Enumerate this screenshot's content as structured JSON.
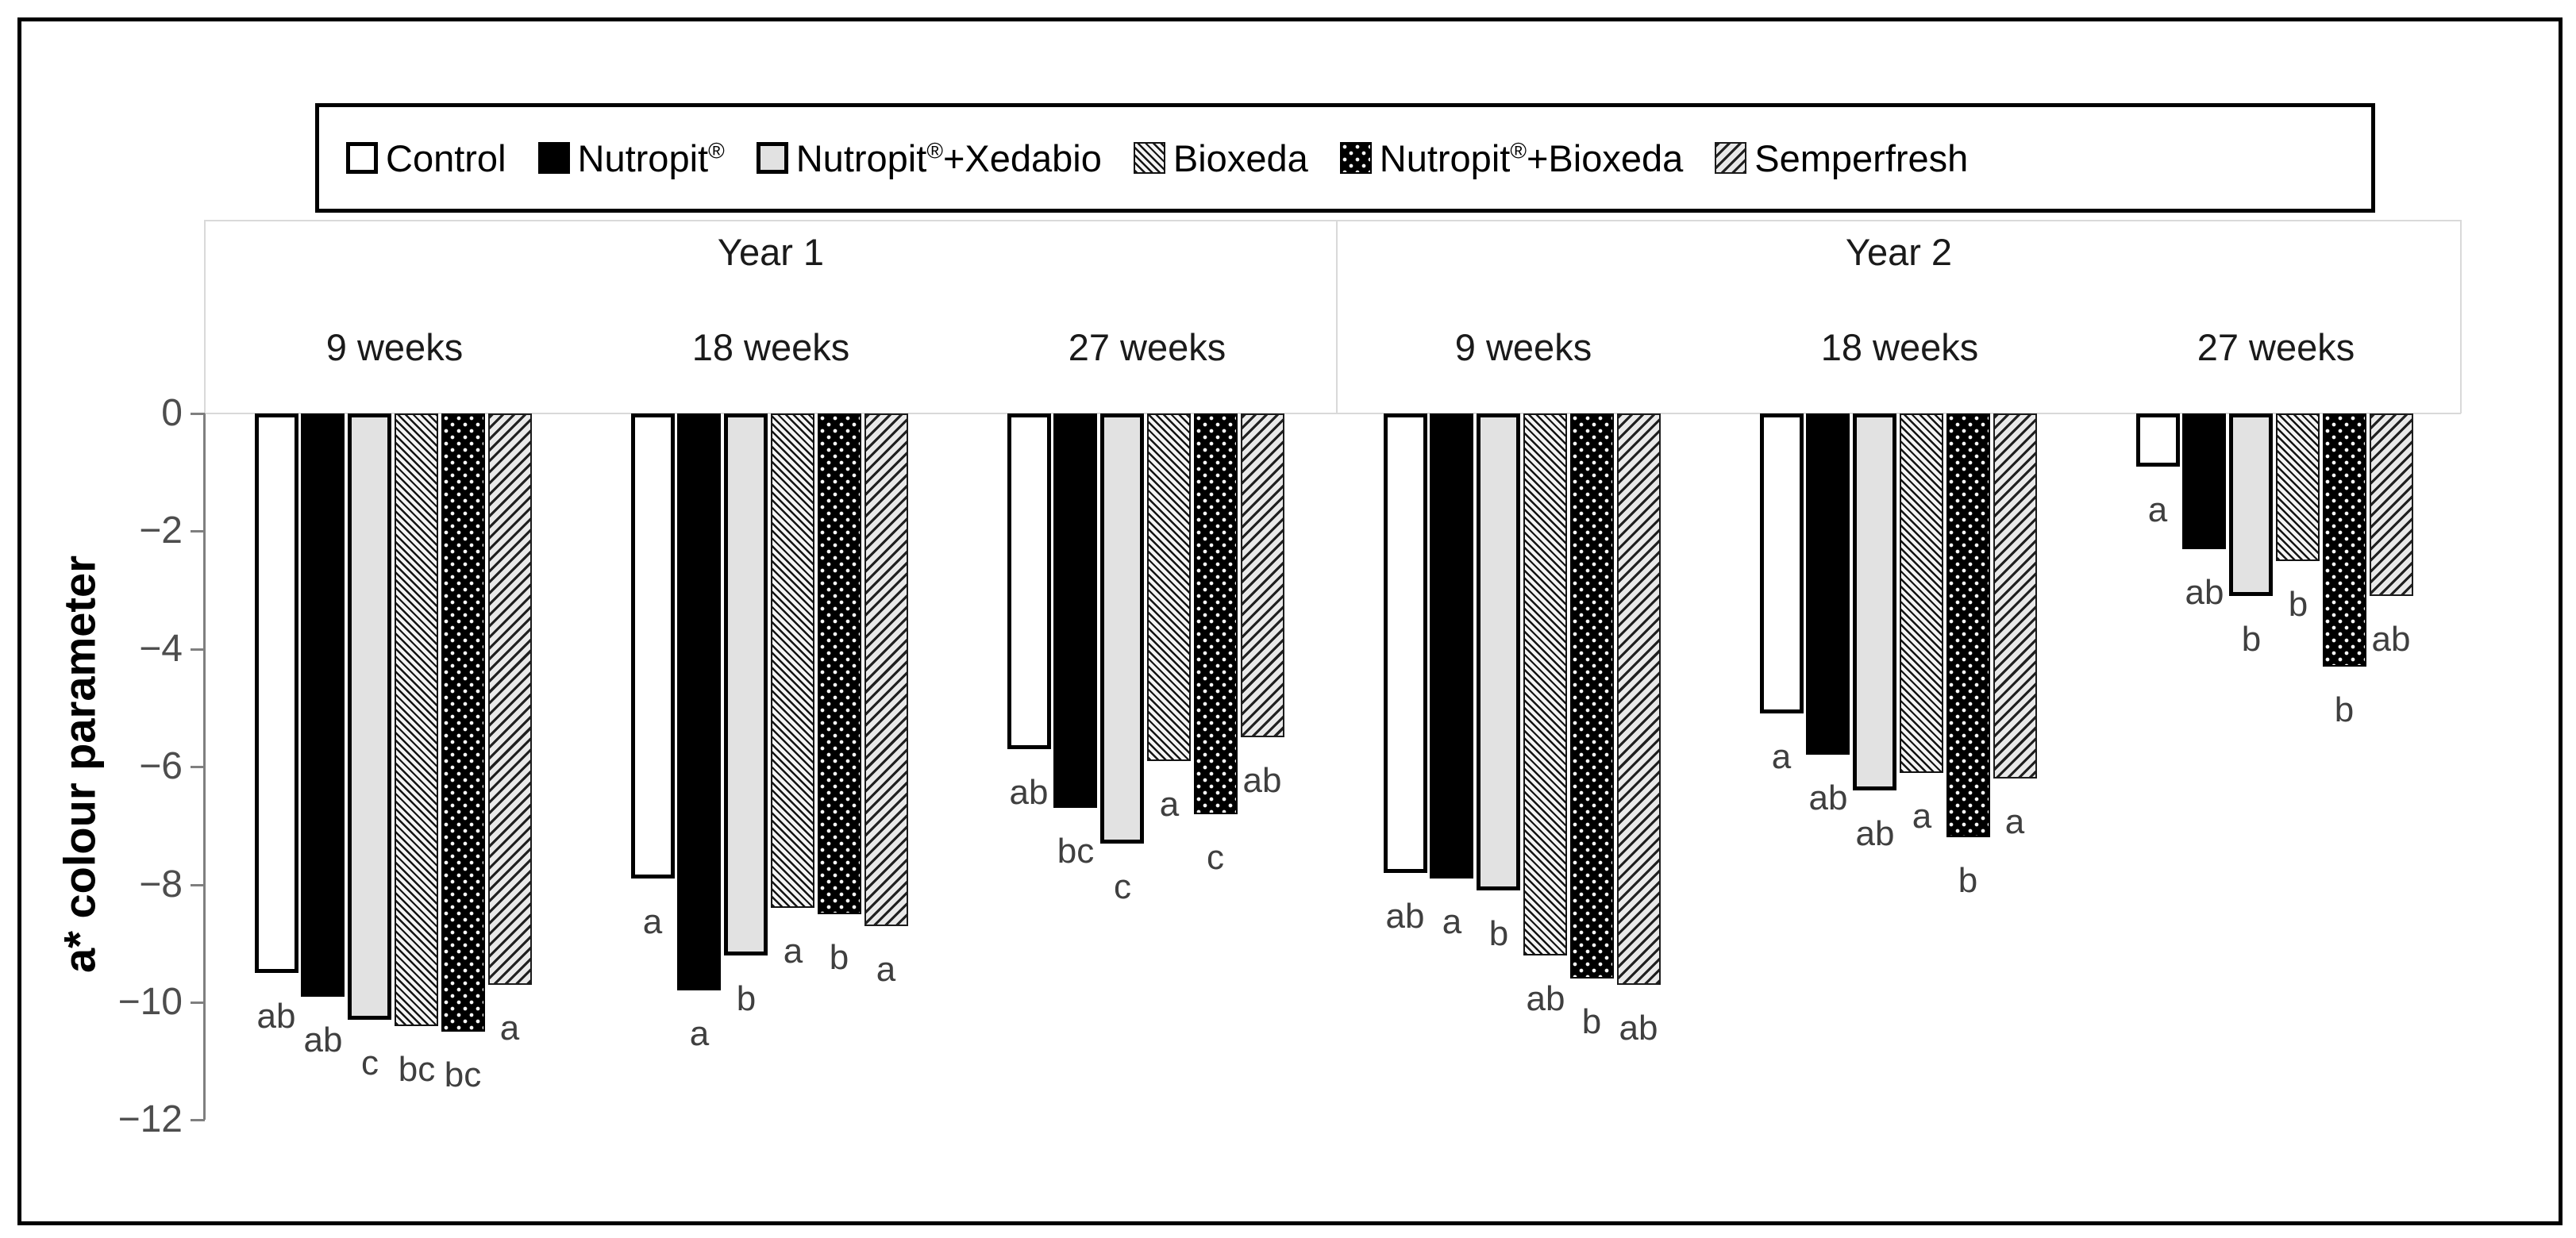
{
  "colors": {
    "hairline": "#d9d9d9",
    "axis_line": "#7f7f7f",
    "tick_text": "#4d4d4d",
    "letter_text": "#3f3f3f",
    "bar_light_gray": "#e2e2e2",
    "bar_black": "#000000",
    "background": "#ffffff"
  },
  "chart_data": {
    "type": "bar",
    "title": "",
    "xlabel": "",
    "ylabel": "a* colour parameter",
    "ylim": [
      -12,
      0
    ],
    "ytick_labels": [
      "0",
      "−2",
      "−4",
      "−6",
      "−8",
      "−10",
      "−12"
    ],
    "grid": false,
    "legend_position": "top",
    "categories": [
      "9 weeks",
      "18 weeks",
      "27 weeks",
      "9 weeks",
      "18 weeks",
      "27 weeks"
    ],
    "year_bands": [
      {
        "label": "Year 1",
        "group_indexes": [
          0,
          1,
          2
        ]
      },
      {
        "label": "Year 2",
        "group_indexes": [
          3,
          4,
          5
        ]
      }
    ],
    "series": [
      {
        "name": "Control",
        "pattern": "white-outline",
        "values": [
          -9.5,
          -7.9,
          -5.7,
          -7.8,
          -5.1,
          -0.9
        ],
        "sig_letters": [
          "ab",
          "a",
          "ab",
          "ab",
          "a",
          "a"
        ]
      },
      {
        "name": "Nutropit®",
        "pattern": "solid-black",
        "values": [
          -9.9,
          -9.8,
          -6.7,
          -7.9,
          -5.8,
          -2.3
        ],
        "sig_letters": [
          "ab",
          "a",
          "bc",
          "a",
          "ab",
          "ab"
        ]
      },
      {
        "name": "Nutropit®+Xedabio",
        "pattern": "light-gray",
        "values": [
          -10.3,
          -9.2,
          -7.3,
          -8.1,
          -6.4,
          -3.1
        ],
        "sig_letters": [
          "c",
          "b",
          "c",
          "b",
          "ab",
          "b"
        ]
      },
      {
        "name": "Bioxeda",
        "pattern": "diagonal-hatch-down",
        "values": [
          -10.4,
          -8.4,
          -5.9,
          -9.2,
          -6.1,
          -2.5
        ],
        "sig_letters": [
          "bc",
          "a",
          "a",
          "ab",
          "a",
          "b"
        ]
      },
      {
        "name": "Nutropit®+Bioxeda",
        "pattern": "black-white-dots",
        "values": [
          -10.5,
          -8.5,
          -6.8,
          -9.6,
          -7.2,
          -4.3
        ],
        "sig_letters": [
          "bc",
          "b",
          "c",
          "b",
          "b",
          "b"
        ]
      },
      {
        "name": "Semperfresh",
        "pattern": "diagonal-hatch-up",
        "values": [
          -9.7,
          -8.7,
          -5.5,
          -9.7,
          -6.2,
          -3.1
        ],
        "sig_letters": [
          "a",
          "a",
          "ab",
          "ab",
          "a",
          "ab"
        ]
      }
    ]
  }
}
